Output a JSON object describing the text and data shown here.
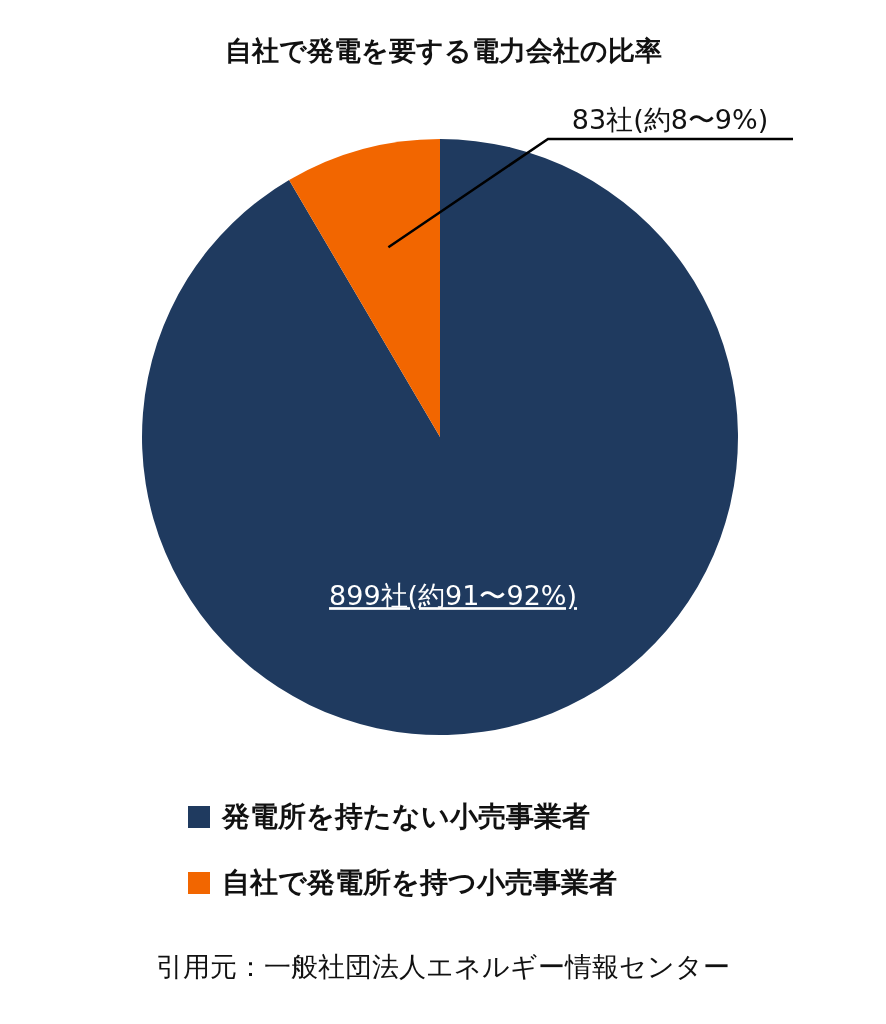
{
  "chart_data": {
    "type": "pie",
    "title": "自社で発電を要する電力会社の比率",
    "categories": [
      "発電所を持たない小売事業者",
      "自社で発電所を持つ小売事業者"
    ],
    "values": [
      899,
      83
    ],
    "colors": [
      "#1f3a5f",
      "#f26600"
    ],
    "value_labels": [
      "899社(約91〜92%)",
      "83社(約8〜9%)"
    ],
    "legend": "bottom",
    "annotations": [
      "引用元：一般社団法人エネルギー情報センター"
    ]
  }
}
